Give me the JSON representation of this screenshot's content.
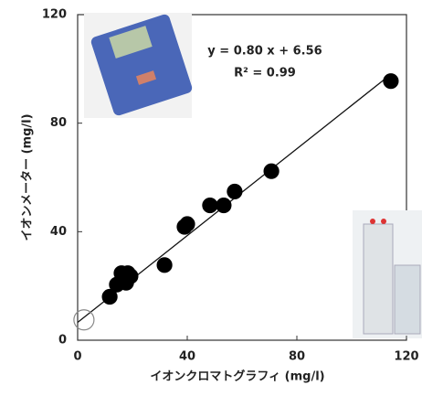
{
  "chart_data": {
    "type": "scatter",
    "x_label": "イオンクロマトグラフィ (mg/l)",
    "y_label": "イオンメーター (mg/l)",
    "equation": "y = 0.80 x + 6.56",
    "r2_label": "R² = 0.99",
    "fit": {
      "slope": 0.8,
      "intercept": 6.56
    },
    "xlim": [
      0,
      120
    ],
    "ylim": [
      0,
      120
    ],
    "xticks": [
      0,
      40,
      80,
      120
    ],
    "yticks": [
      0,
      40,
      80,
      120
    ],
    "series": [
      {
        "color": "#000000",
        "x": [
          11.7,
          14.3,
          16,
          17.7,
          18.3,
          19.3,
          31.7,
          39,
          40,
          48.3,
          53.3,
          57.3,
          70.7,
          114.3
        ],
        "values": [
          16,
          20.5,
          24.7,
          21.2,
          24.7,
          23.6,
          27.7,
          41.8,
          42.8,
          49.7,
          49.7,
          54.8,
          62.3,
          95.5
        ]
      },
      {
        "color": "#888888",
        "hollow": true,
        "x": [
          2.3
        ],
        "values": [
          7.5
        ]
      }
    ]
  }
}
